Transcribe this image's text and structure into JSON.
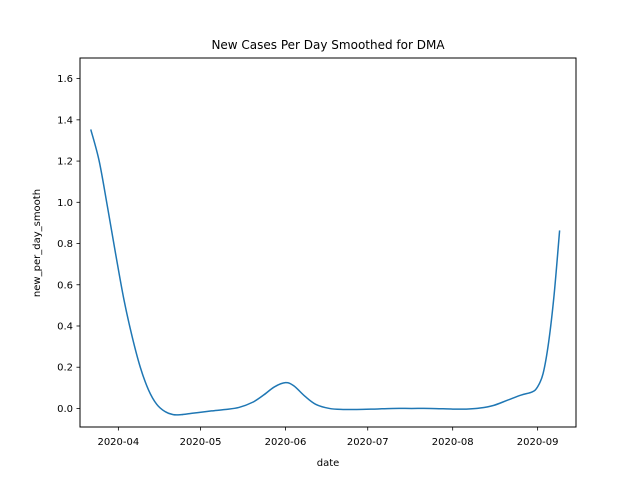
{
  "chart_data": {
    "type": "line",
    "title": "New Cases Per Day Smoothed for DMA",
    "xlabel": "date",
    "ylabel": "new_per_day_smooth",
    "x_axis_type": "date",
    "xlim": [
      "2020-03-18",
      "2020-09-15"
    ],
    "ylim": [
      -0.09,
      1.7
    ],
    "x_ticks": [
      "2020-04-01",
      "2020-05-01",
      "2020-06-01",
      "2020-07-01",
      "2020-08-01",
      "2020-09-01"
    ],
    "x_tick_labels": [
      "2020-04",
      "2020-05",
      "2020-06",
      "2020-07",
      "2020-08",
      "2020-09"
    ],
    "y_ticks": [
      0.0,
      0.2,
      0.4,
      0.6,
      0.8,
      1.0,
      1.2,
      1.4,
      1.6
    ],
    "y_tick_labels": [
      "0.0",
      "0.2",
      "0.4",
      "0.6",
      "0.8",
      "1.0",
      "1.2",
      "1.4",
      "1.6"
    ],
    "grid": false,
    "legend": "none",
    "series": [
      {
        "color": "#1f77b4",
        "x": [
          "2020-03-22",
          "2020-03-25",
          "2020-03-28",
          "2020-03-31",
          "2020-04-03",
          "2020-04-06",
          "2020-04-09",
          "2020-04-12",
          "2020-04-15",
          "2020-04-18",
          "2020-04-21",
          "2020-04-24",
          "2020-04-27",
          "2020-04-30",
          "2020-05-05",
          "2020-05-10",
          "2020-05-15",
          "2020-05-20",
          "2020-05-24",
          "2020-05-28",
          "2020-06-01",
          "2020-06-04",
          "2020-06-08",
          "2020-06-12",
          "2020-06-17",
          "2020-06-22",
          "2020-06-27",
          "2020-07-03",
          "2020-07-10",
          "2020-07-17",
          "2020-07-24",
          "2020-08-01",
          "2020-08-06",
          "2020-08-11",
          "2020-08-16",
          "2020-08-21",
          "2020-08-26",
          "2020-08-30",
          "2020-09-01",
          "2020-09-03",
          "2020-09-05",
          "2020-09-07",
          "2020-09-09"
        ],
        "y": [
          1.35,
          1.2,
          0.98,
          0.75,
          0.53,
          0.35,
          0.2,
          0.09,
          0.02,
          -0.015,
          -0.03,
          -0.03,
          -0.025,
          -0.02,
          -0.012,
          -0.005,
          0.005,
          0.03,
          0.065,
          0.105,
          0.125,
          0.11,
          0.06,
          0.02,
          0.0,
          -0.005,
          -0.005,
          -0.003,
          0.0,
          0.0,
          0.0,
          -0.003,
          -0.003,
          0.002,
          0.015,
          0.04,
          0.065,
          0.08,
          0.105,
          0.17,
          0.32,
          0.55,
          0.86
        ]
      }
    ]
  }
}
